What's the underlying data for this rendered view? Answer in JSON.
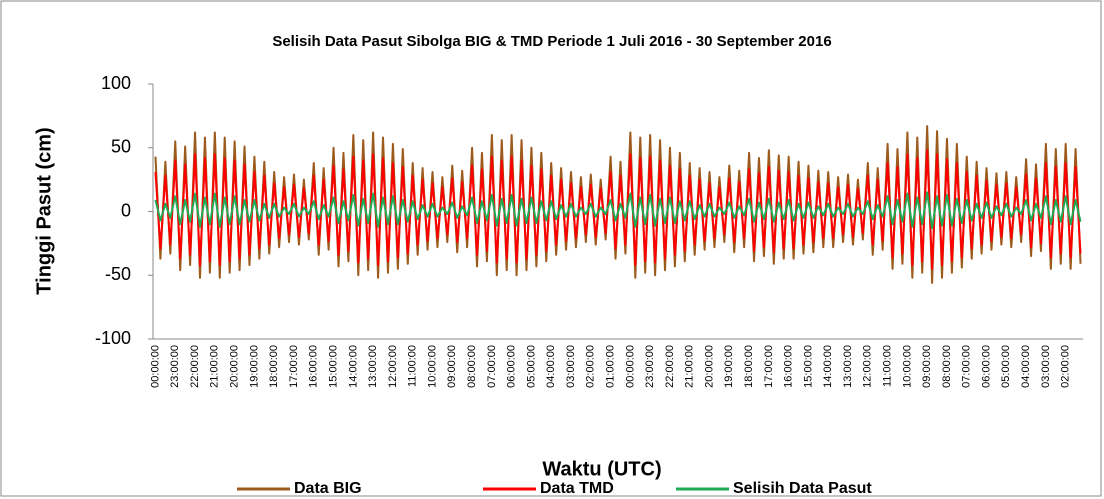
{
  "chart_data": {
    "type": "line",
    "title": "Selisih Data Pasut Sibolga BIG & TMD Periode 1 Juli  2016 - 30 September 2016",
    "y_label": "Tinggi Pasut (cm)",
    "x_label": "Waktu (UTC)",
    "ylim": [
      -100,
      100
    ],
    "yticks": [
      -100,
      -50,
      0,
      50,
      100
    ],
    "grid": false,
    "legend": "bottom",
    "categories": [
      "00:00:00",
      null,
      null,
      null,
      "23:00:00",
      null,
      null,
      null,
      "22:00:00",
      null,
      null,
      null,
      "21:00:00",
      null,
      null,
      null,
      "20:00:00",
      null,
      null,
      null,
      "19:00:00",
      null,
      null,
      null,
      "18:00:00",
      null,
      null,
      null,
      "17:00:00",
      null,
      null,
      null,
      "16:00:00",
      null,
      null,
      null,
      "15:00:00",
      null,
      null,
      null,
      "14:00:00",
      null,
      null,
      null,
      "13:00:00",
      null,
      null,
      null,
      "12:00:00",
      null,
      null,
      null,
      "11:00:00",
      null,
      null,
      null,
      "10:00:00",
      null,
      null,
      null,
      "09:00:00",
      null,
      null,
      null,
      "08:00:00",
      null,
      null,
      null,
      "07:00:00",
      null,
      null,
      null,
      "06:00:00",
      null,
      null,
      null,
      "05:00:00",
      null,
      null,
      null,
      "04:00:00",
      null,
      null,
      null,
      "03:00:00",
      null,
      null,
      null,
      "02:00:00",
      null,
      null,
      null,
      "01:00:00",
      null,
      null,
      null,
      "00:00:00",
      null,
      null,
      null,
      "23:00:00",
      null,
      null,
      null,
      "22:00:00",
      null,
      null,
      null,
      "21:00:00",
      null,
      null,
      null,
      "20:00:00",
      null,
      null,
      null,
      "19:00:00",
      null,
      null,
      null,
      "18:00:00",
      null,
      null,
      null,
      "17:00:00",
      null,
      null,
      null,
      "16:00:00",
      null,
      null,
      null,
      "15:00:00",
      null,
      null,
      null,
      "14:00:00",
      null,
      null,
      null,
      "13:00:00",
      null,
      null,
      null,
      "12:00:00",
      null,
      null,
      null,
      "11:00:00",
      null,
      null,
      null,
      "10:00:00",
      null,
      null,
      null,
      "09:00:00",
      null,
      null,
      null,
      "08:00:00",
      null,
      null,
      null,
      "07:00:00",
      null,
      null,
      null,
      "06:00:00",
      null,
      null,
      null,
      "05:00:00",
      null,
      null,
      null,
      "04:00:00",
      null,
      null,
      null,
      "03:00:00",
      null,
      null,
      null,
      "02:00:00",
      null,
      null,
      null
    ],
    "series": [
      {
        "name": "Data BIG",
        "color": "#9c5a1c",
        "values": [
          43,
          -37,
          39,
          -33,
          55,
          -46,
          51,
          -42,
          62,
          -52,
          58,
          -48,
          62,
          -52,
          58,
          -48,
          55,
          -46,
          51,
          -42,
          43,
          -37,
          39,
          -33,
          31,
          -28,
          27,
          -24,
          29,
          -26,
          25,
          -22,
          38,
          -34,
          34,
          -30,
          50,
          -43,
          46,
          -39,
          60,
          -50,
          56,
          -46,
          62,
          -52,
          58,
          -48,
          53,
          -45,
          49,
          -41,
          38,
          -34,
          34,
          -30,
          31,
          -28,
          27,
          -24,
          36,
          -32,
          32,
          -28,
          50,
          -43,
          46,
          -39,
          60,
          -50,
          56,
          -46,
          60,
          -50,
          56,
          -46,
          50,
          -43,
          46,
          -39,
          38,
          -34,
          34,
          -30,
          31,
          -28,
          27,
          -24,
          29,
          -26,
          25,
          -22,
          43,
          -37,
          39,
          -33,
          62,
          -52,
          58,
          -48,
          60,
          -50,
          56,
          -46,
          50,
          -43,
          46,
          -39,
          38,
          -34,
          34,
          -30,
          31,
          -28,
          27,
          -24,
          36,
          -32,
          32,
          -28,
          46,
          -39,
          42,
          -35,
          48,
          -41,
          44,
          -37,
          43,
          -37,
          39,
          -33,
          36,
          -32,
          32,
          -28,
          31,
          -28,
          27,
          -24,
          29,
          -26,
          25,
          -22,
          38,
          -34,
          34,
          -30,
          53,
          -45,
          49,
          -41,
          62,
          -52,
          58,
          -48,
          67,
          -56,
          63,
          -52,
          57,
          -48,
          53,
          -44,
          43,
          -37,
          39,
          -33,
          34,
          -30,
          30,
          -26,
          31,
          -28,
          27,
          -24,
          41,
          -35,
          37,
          -31,
          53,
          -45,
          49,
          -41,
          53,
          -45,
          49,
          -41
        ]
      },
      {
        "name": "Data TMD",
        "color": "#ff0000",
        "values": [
          31,
          -29,
          28,
          -26,
          40,
          -37,
          37,
          -34,
          45,
          -42,
          42,
          -39,
          45,
          -42,
          42,
          -39,
          40,
          -37,
          37,
          -34,
          31,
          -29,
          28,
          -26,
          22,
          -21,
          19,
          -18,
          21,
          -20,
          18,
          -17,
          28,
          -26,
          25,
          -23,
          36,
          -34,
          33,
          -31,
          43,
          -40,
          40,
          -37,
          45,
          -42,
          42,
          -39,
          38,
          -36,
          35,
          -33,
          28,
          -26,
          25,
          -23,
          22,
          -21,
          19,
          -18,
          26,
          -24,
          23,
          -21,
          36,
          -34,
          33,
          -31,
          43,
          -40,
          40,
          -37,
          43,
          -40,
          40,
          -37,
          36,
          -34,
          33,
          -31,
          28,
          -26,
          25,
          -23,
          22,
          -21,
          19,
          -18,
          21,
          -20,
          18,
          -17,
          31,
          -29,
          28,
          -26,
          45,
          -42,
          42,
          -39,
          43,
          -40,
          40,
          -37,
          36,
          -34,
          33,
          -31,
          28,
          -26,
          25,
          -23,
          22,
          -21,
          19,
          -18,
          26,
          -24,
          23,
          -21,
          33,
          -31,
          30,
          -28,
          35,
          -32,
          32,
          -29,
          31,
          -29,
          28,
          -26,
          26,
          -24,
          23,
          -21,
          22,
          -21,
          19,
          -18,
          21,
          -20,
          18,
          -17,
          28,
          -26,
          25,
          -23,
          38,
          -36,
          35,
          -33,
          45,
          -42,
          42,
          -39,
          48,
          -45,
          45,
          -42,
          41,
          -39,
          38,
          -36,
          31,
          -29,
          28,
          -26,
          24,
          -23,
          21,
          -20,
          22,
          -21,
          19,
          -18,
          29,
          -28,
          26,
          -25,
          38,
          -36,
          35,
          -33,
          38,
          -36,
          35,
          -33
        ]
      },
      {
        "name": "Selisih Data Pasut",
        "color": "#1faa55",
        "values": [
          9,
          -7,
          6,
          -5,
          12,
          -10,
          9,
          -8,
          14,
          -12,
          11,
          -10,
          14,
          -12,
          11,
          -10,
          12,
          -10,
          9,
          -8,
          9,
          -7,
          6,
          -5,
          6,
          -4,
          3,
          -2,
          6,
          -4,
          3,
          -2,
          8,
          -6,
          5,
          -4,
          11,
          -9,
          8,
          -7,
          13,
          -11,
          10,
          -9,
          14,
          -12,
          11,
          -10,
          12,
          -10,
          9,
          -8,
          8,
          -6,
          5,
          -4,
          6,
          -4,
          3,
          -2,
          7,
          -5,
          4,
          -3,
          11,
          -9,
          8,
          -7,
          13,
          -11,
          10,
          -9,
          13,
          -11,
          10,
          -9,
          11,
          -9,
          8,
          -7,
          8,
          -6,
          5,
          -4,
          6,
          -4,
          3,
          -2,
          6,
          -4,
          3,
          -2,
          9,
          -7,
          6,
          -5,
          14,
          -12,
          11,
          -10,
          13,
          -11,
          10,
          -9,
          11,
          -9,
          8,
          -7,
          8,
          -6,
          5,
          -4,
          6,
          -4,
          3,
          -2,
          7,
          -5,
          4,
          -3,
          10,
          -8,
          7,
          -6,
          10,
          -8,
          7,
          -6,
          9,
          -7,
          6,
          -5,
          7,
          -5,
          4,
          -3,
          6,
          -4,
          3,
          -2,
          6,
          -4,
          3,
          -2,
          8,
          -6,
          5,
          -4,
          12,
          -10,
          9,
          -8,
          14,
          -12,
          11,
          -10,
          15,
          -13,
          12,
          -11,
          13,
          -11,
          10,
          -9,
          9,
          -7,
          6,
          -5,
          7,
          -5,
          4,
          -3,
          6,
          -4,
          3,
          -2,
          9,
          -7,
          6,
          -5,
          12,
          -10,
          9,
          -8,
          12,
          -10,
          9,
          -8
        ]
      }
    ]
  }
}
